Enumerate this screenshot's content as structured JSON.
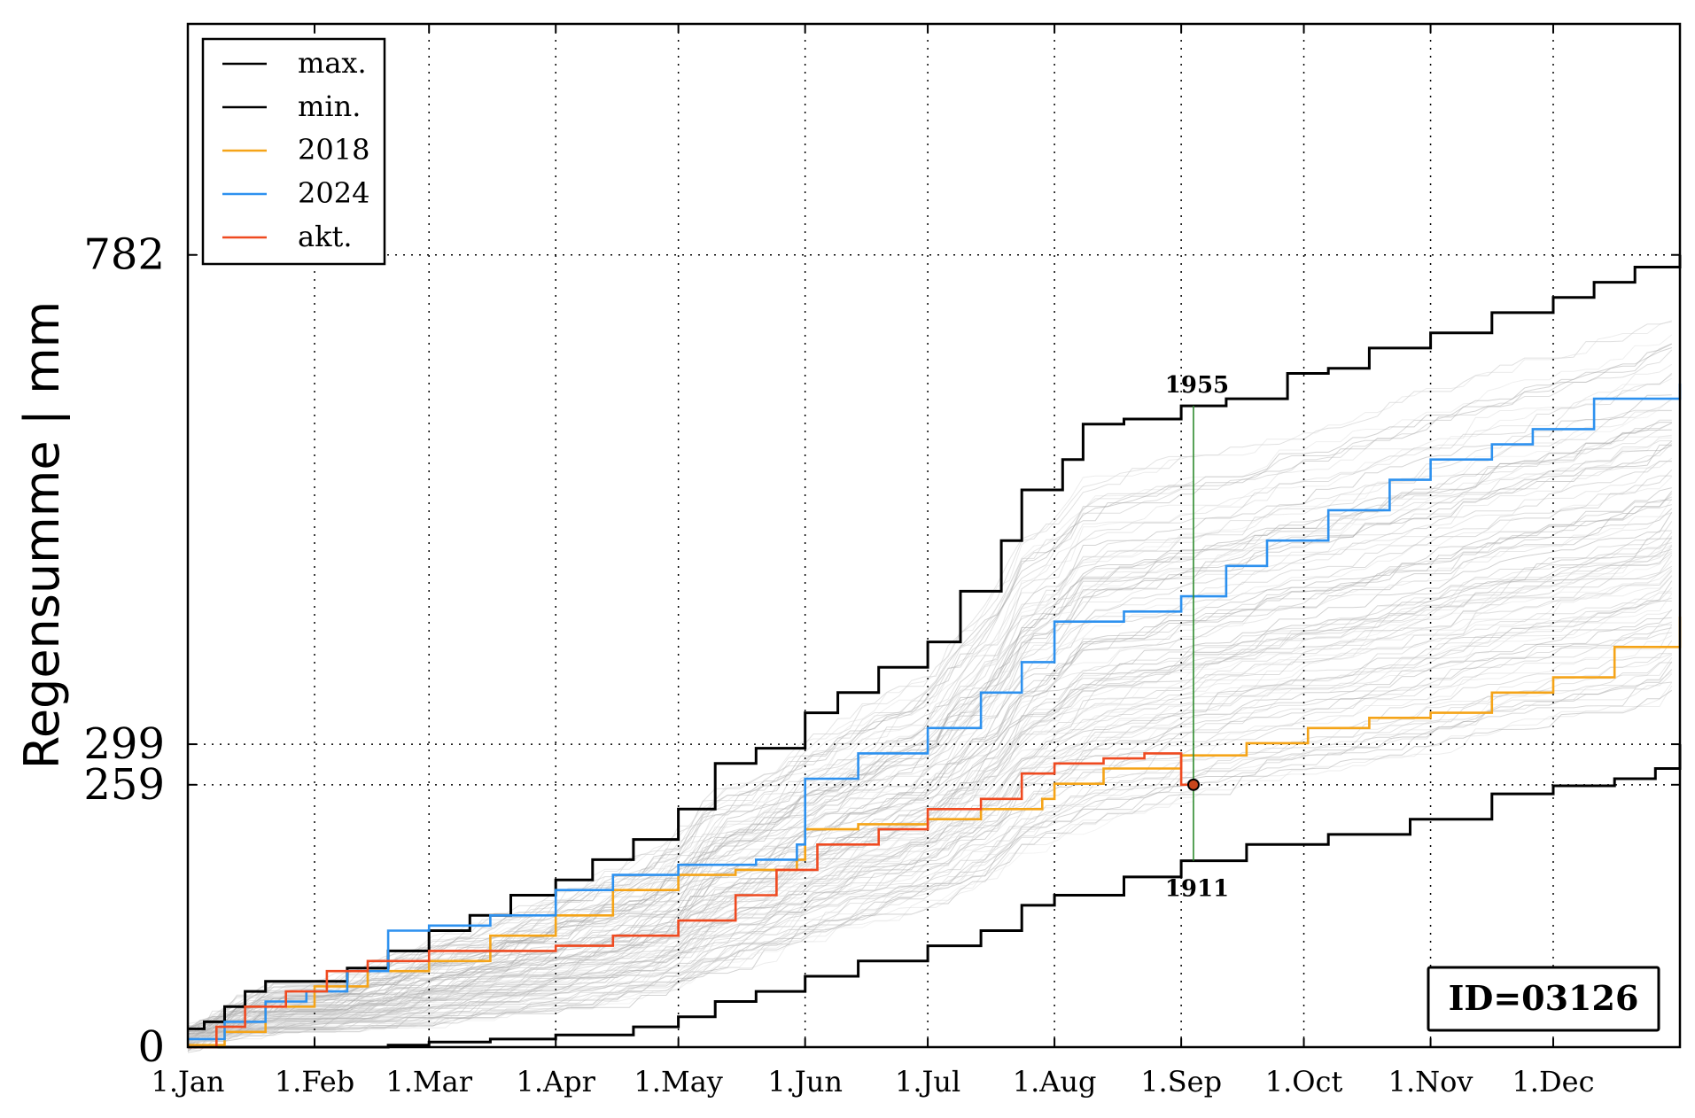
{
  "chart_data": {
    "type": "line",
    "ylabel": "Regensumme | mm",
    "xlabel": "",
    "title": "",
    "x_unit": "day of year",
    "xlim": [
      1,
      366
    ],
    "ylim": [
      0,
      1010
    ],
    "grid": true,
    "legend_position": "top-left",
    "id_label": "ID=03126",
    "x_ticks": [
      {
        "label": "1.Jan",
        "day": 1
      },
      {
        "label": "1.Feb",
        "day": 32
      },
      {
        "label": "1.Mar",
        "day": 60
      },
      {
        "label": "1.Apr",
        "day": 91
      },
      {
        "label": "1.May",
        "day": 121
      },
      {
        "label": "1.Jun",
        "day": 152
      },
      {
        "label": "1.Jul",
        "day": 182
      },
      {
        "label": "1.Aug",
        "day": 213
      },
      {
        "label": "1.Sep",
        "day": 244
      },
      {
        "label": "1.Oct",
        "day": 274
      },
      {
        "label": "1.Nov",
        "day": 305
      },
      {
        "label": "1.Dec",
        "day": 335
      }
    ],
    "y_ticks": [
      0,
      259,
      299,
      782
    ],
    "annotations": {
      "current_day": 247,
      "current_value": 259,
      "max_year_label": "1955",
      "max_value_at_day": 633,
      "min_year_label": "1911",
      "min_value_at_day": 184
    },
    "series": [
      {
        "name": "max.",
        "color": "#000000",
        "points": [
          [
            1,
            18
          ],
          [
            5,
            25
          ],
          [
            10,
            40
          ],
          [
            15,
            55
          ],
          [
            20,
            65
          ],
          [
            32,
            65
          ],
          [
            40,
            78
          ],
          [
            50,
            95
          ],
          [
            60,
            115
          ],
          [
            70,
            130
          ],
          [
            80,
            150
          ],
          [
            91,
            165
          ],
          [
            100,
            185
          ],
          [
            110,
            205
          ],
          [
            121,
            235
          ],
          [
            130,
            280
          ],
          [
            140,
            295
          ],
          [
            152,
            330
          ],
          [
            160,
            350
          ],
          [
            170,
            375
          ],
          [
            182,
            400
          ],
          [
            190,
            450
          ],
          [
            200,
            500
          ],
          [
            205,
            550
          ],
          [
            215,
            580
          ],
          [
            220,
            615
          ],
          [
            230,
            620
          ],
          [
            244,
            633
          ],
          [
            255,
            640
          ],
          [
            270,
            665
          ],
          [
            280,
            670
          ],
          [
            290,
            690
          ],
          [
            305,
            705
          ],
          [
            320,
            725
          ],
          [
            335,
            740
          ],
          [
            345,
            755
          ],
          [
            355,
            770
          ],
          [
            366,
            782
          ]
        ]
      },
      {
        "name": "min.",
        "color": "#000000",
        "points": [
          [
            1,
            0
          ],
          [
            32,
            0
          ],
          [
            50,
            2
          ],
          [
            60,
            5
          ],
          [
            75,
            8
          ],
          [
            91,
            12
          ],
          [
            110,
            20
          ],
          [
            121,
            30
          ],
          [
            130,
            45
          ],
          [
            140,
            55
          ],
          [
            152,
            70
          ],
          [
            165,
            85
          ],
          [
            182,
            100
          ],
          [
            195,
            115
          ],
          [
            205,
            140
          ],
          [
            213,
            150
          ],
          [
            230,
            168
          ],
          [
            244,
            184
          ],
          [
            260,
            200
          ],
          [
            280,
            210
          ],
          [
            300,
            225
          ],
          [
            320,
            250
          ],
          [
            335,
            258
          ],
          [
            350,
            265
          ],
          [
            360,
            275
          ],
          [
            366,
            299
          ]
        ]
      },
      {
        "name": "2018",
        "color": "#f5a418",
        "points": [
          [
            1,
            2
          ],
          [
            10,
            15
          ],
          [
            20,
            40
          ],
          [
            32,
            60
          ],
          [
            45,
            75
          ],
          [
            60,
            85
          ],
          [
            75,
            110
          ],
          [
            91,
            130
          ],
          [
            105,
            155
          ],
          [
            121,
            170
          ],
          [
            135,
            175
          ],
          [
            150,
            185
          ],
          [
            152,
            215
          ],
          [
            165,
            220
          ],
          [
            182,
            225
          ],
          [
            195,
            235
          ],
          [
            210,
            245
          ],
          [
            213,
            260
          ],
          [
            225,
            275
          ],
          [
            244,
            288
          ],
          [
            260,
            300
          ],
          [
            275,
            315
          ],
          [
            290,
            325
          ],
          [
            305,
            330
          ],
          [
            320,
            350
          ],
          [
            335,
            365
          ],
          [
            350,
            395
          ],
          [
            366,
            425
          ]
        ]
      },
      {
        "name": "2024",
        "color": "#2d91ef",
        "points": [
          [
            1,
            8
          ],
          [
            10,
            25
          ],
          [
            20,
            45
          ],
          [
            30,
            55
          ],
          [
            40,
            75
          ],
          [
            50,
            115
          ],
          [
            60,
            120
          ],
          [
            75,
            130
          ],
          [
            91,
            155
          ],
          [
            105,
            170
          ],
          [
            121,
            180
          ],
          [
            140,
            185
          ],
          [
            150,
            200
          ],
          [
            152,
            265
          ],
          [
            165,
            290
          ],
          [
            182,
            315
          ],
          [
            195,
            350
          ],
          [
            205,
            380
          ],
          [
            213,
            420
          ],
          [
            230,
            430
          ],
          [
            244,
            445
          ],
          [
            255,
            475
          ],
          [
            265,
            500
          ],
          [
            280,
            530
          ],
          [
            295,
            560
          ],
          [
            305,
            580
          ],
          [
            320,
            595
          ],
          [
            330,
            610
          ],
          [
            345,
            640
          ],
          [
            366,
            655
          ]
        ]
      },
      {
        "name": "akt.",
        "color": "#ef4a20",
        "points": [
          [
            1,
            0
          ],
          [
            8,
            20
          ],
          [
            15,
            40
          ],
          [
            25,
            55
          ],
          [
            35,
            75
          ],
          [
            45,
            85
          ],
          [
            60,
            95
          ],
          [
            75,
            95
          ],
          [
            91,
            100
          ],
          [
            105,
            110
          ],
          [
            121,
            125
          ],
          [
            135,
            150
          ],
          [
            145,
            175
          ],
          [
            155,
            200
          ],
          [
            170,
            215
          ],
          [
            182,
            235
          ],
          [
            195,
            245
          ],
          [
            205,
            270
          ],
          [
            213,
            280
          ],
          [
            225,
            285
          ],
          [
            235,
            290
          ],
          [
            244,
            259
          ],
          [
            247,
            259
          ]
        ]
      }
    ]
  }
}
